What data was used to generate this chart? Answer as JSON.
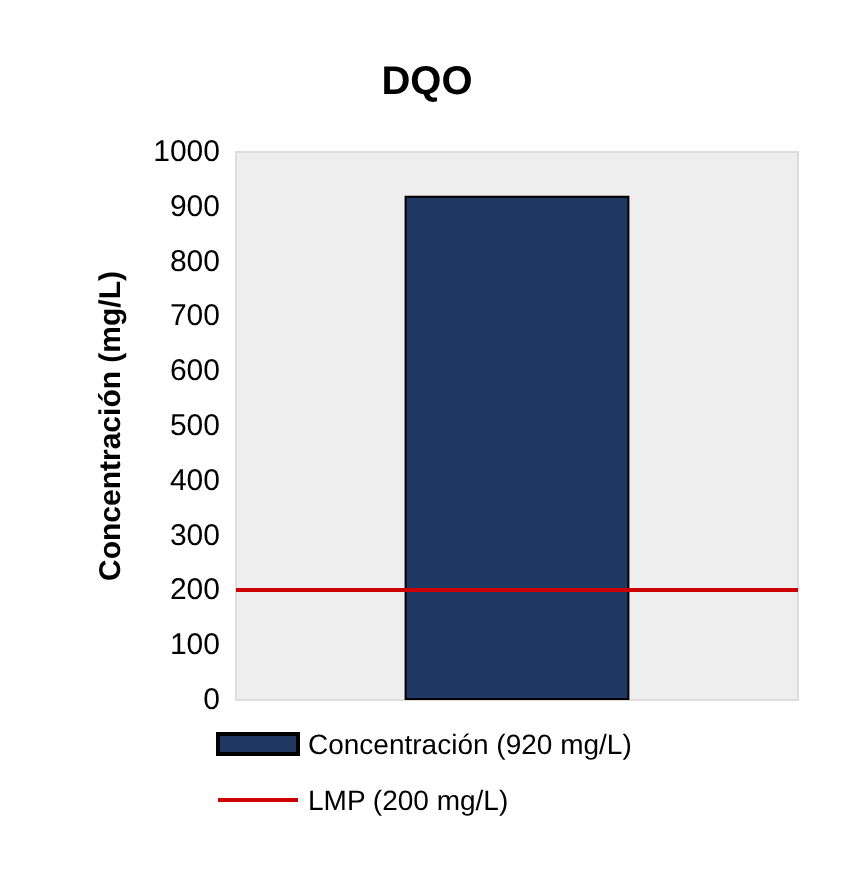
{
  "chart_data": {
    "type": "bar",
    "title": "DQO",
    "ylabel": "Concentración (mg/L)",
    "categories": [
      null
    ],
    "series": [
      {
        "name": "Concentración (920 mg/L)",
        "color": "#1f3864",
        "values": [
          920
        ]
      }
    ],
    "ylim": [
      0,
      1000
    ],
    "yticks": [
      0,
      100,
      200,
      300,
      400,
      500,
      600,
      700,
      800,
      900,
      1000
    ],
    "ref_lines": [
      {
        "axis": "y",
        "value": 200,
        "label": "LMP (200 mg/L)",
        "color": "#cc0000"
      }
    ],
    "grid": false,
    "legend": "bottom"
  }
}
